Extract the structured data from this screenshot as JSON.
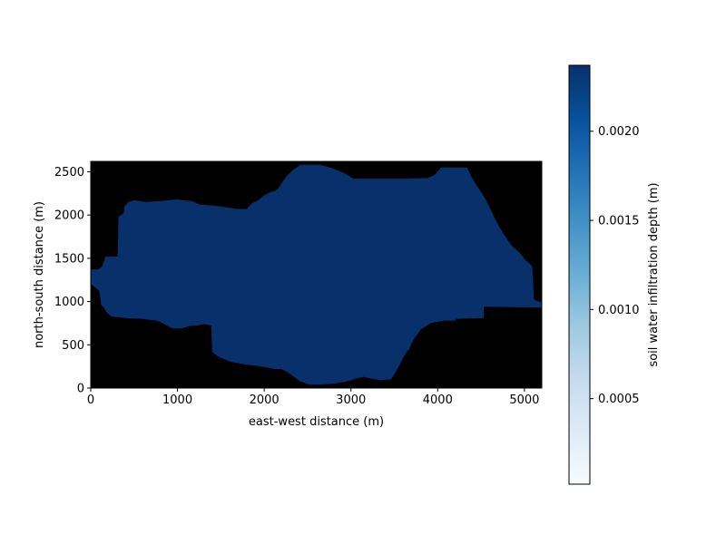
{
  "chart_data": {
    "type": "heatmap",
    "title": "",
    "xlabel": "east-west distance (m)",
    "ylabel": "north-south distance (m)",
    "xlim": [
      0,
      5200
    ],
    "ylim": [
      0,
      2620
    ],
    "xticks": [
      0,
      1000,
      2000,
      3000,
      4000,
      5000
    ],
    "yticks": [
      0,
      500,
      1000,
      1500,
      2000,
      2500
    ],
    "background_color": "#000000",
    "fill_color": "#08306b",
    "grid": false,
    "colorbar": {
      "label": "soil water infiltration depth (m)",
      "colormap": "Blues",
      "range": [
        2e-05,
        0.00237
      ],
      "ticks": [
        0.0005,
        0.001,
        0.0015,
        0.002
      ],
      "tick_labels": [
        "0.0005",
        "0.0010",
        "0.0015",
        "0.0020"
      ],
      "colors": [
        "#f7fbff",
        "#deebf7",
        "#c6dbef",
        "#9ecae1",
        "#6baed6",
        "#4292c6",
        "#2171b5",
        "#08519c",
        "#08306b"
      ]
    },
    "watershed_boundary": [
      [
        0,
        1370
      ],
      [
        80,
        1370
      ],
      [
        130,
        1400
      ],
      [
        170,
        1520
      ],
      [
        310,
        1520
      ],
      [
        320,
        1980
      ],
      [
        380,
        2020
      ],
      [
        390,
        2100
      ],
      [
        430,
        2150
      ],
      [
        500,
        2170
      ],
      [
        630,
        2150
      ],
      [
        780,
        2160
      ],
      [
        990,
        2180
      ],
      [
        1170,
        2160
      ],
      [
        1260,
        2120
      ],
      [
        1430,
        2110
      ],
      [
        1560,
        2090
      ],
      [
        1690,
        2070
      ],
      [
        1800,
        2070
      ],
      [
        1830,
        2110
      ],
      [
        1880,
        2150
      ],
      [
        1920,
        2160
      ],
      [
        1990,
        2220
      ],
      [
        2060,
        2260
      ],
      [
        2150,
        2290
      ],
      [
        2250,
        2440
      ],
      [
        2330,
        2520
      ],
      [
        2420,
        2580
      ],
      [
        2640,
        2580
      ],
      [
        2790,
        2540
      ],
      [
        2930,
        2480
      ],
      [
        3030,
        2420
      ],
      [
        3650,
        2420
      ],
      [
        3890,
        2430
      ],
      [
        3960,
        2460
      ],
      [
        4040,
        2550
      ],
      [
        4340,
        2550
      ],
      [
        4390,
        2440
      ],
      [
        4450,
        2340
      ],
      [
        4530,
        2220
      ],
      [
        4580,
        2130
      ],
      [
        4650,
        1980
      ],
      [
        4710,
        1860
      ],
      [
        4780,
        1750
      ],
      [
        4850,
        1650
      ],
      [
        4940,
        1570
      ],
      [
        5010,
        1480
      ],
      [
        5060,
        1440
      ],
      [
        5090,
        1400
      ],
      [
        5110,
        1020
      ],
      [
        5200,
        990
      ],
      [
        5200,
        930
      ],
      [
        4530,
        940
      ],
      [
        4530,
        810
      ],
      [
        4210,
        800
      ],
      [
        4200,
        780
      ],
      [
        4070,
        780
      ],
      [
        3920,
        750
      ],
      [
        3810,
        680
      ],
      [
        3720,
        560
      ],
      [
        3670,
        450
      ],
      [
        3630,
        400
      ],
      [
        3550,
        250
      ],
      [
        3490,
        140
      ],
      [
        3460,
        100
      ],
      [
        3340,
        90
      ],
      [
        3230,
        110
      ],
      [
        3140,
        130
      ],
      [
        3030,
        100
      ],
      [
        2930,
        70
      ],
      [
        2790,
        50
      ],
      [
        2640,
        40
      ],
      [
        2520,
        40
      ],
      [
        2410,
        80
      ],
      [
        2330,
        140
      ],
      [
        2260,
        190
      ],
      [
        2200,
        220
      ],
      [
        2120,
        220
      ],
      [
        2010,
        240
      ],
      [
        1900,
        260
      ],
      [
        1790,
        270
      ],
      [
        1680,
        290
      ],
      [
        1590,
        310
      ],
      [
        1460,
        370
      ],
      [
        1400,
        420
      ],
      [
        1390,
        720
      ],
      [
        1310,
        740
      ],
      [
        1210,
        720
      ],
      [
        1150,
        720
      ],
      [
        1050,
        690
      ],
      [
        940,
        690
      ],
      [
        880,
        720
      ],
      [
        810,
        760
      ],
      [
        760,
        780
      ],
      [
        600,
        800
      ],
      [
        400,
        810
      ],
      [
        300,
        820
      ],
      [
        230,
        830
      ],
      [
        180,
        880
      ],
      [
        150,
        930
      ],
      [
        120,
        960
      ],
      [
        100,
        1120
      ],
      [
        20,
        1190
      ],
      [
        0,
        1200
      ]
    ]
  }
}
